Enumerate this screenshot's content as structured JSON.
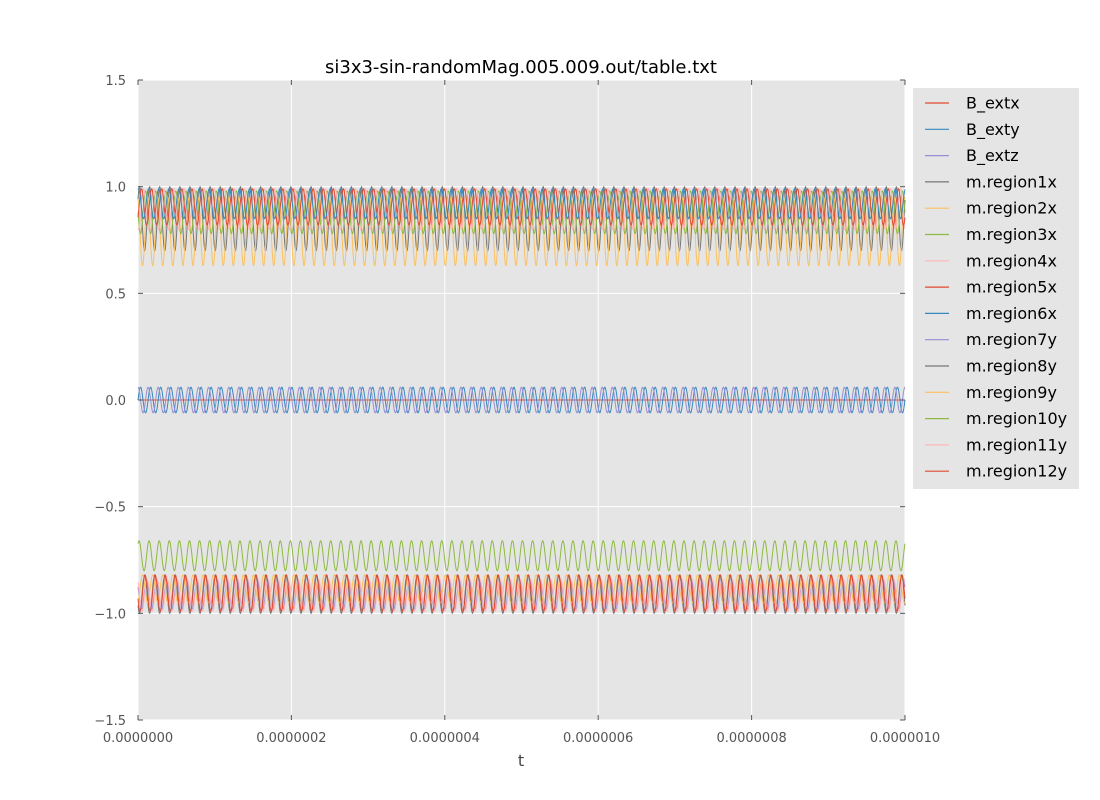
{
  "chart_data": {
    "type": "line",
    "title": "si3x3-sin-randomMag.005.009.out/table.txt",
    "xlabel": "t",
    "ylabel": "",
    "xlim": [
      0,
      1e-06
    ],
    "ylim": [
      -1.5,
      1.5
    ],
    "x_ticks": [
      "0.0000000",
      "0.0000002",
      "0.0000004",
      "0.0000006",
      "0.0000008",
      "0.0000010"
    ],
    "y_ticks": [
      "1.5",
      "1.0",
      "0.5",
      "0.0",
      "−0.5",
      "−1.0",
      "−1.5"
    ],
    "grid": true,
    "legend_position": "outside-right-top",
    "background": "#e5e5e5",
    "cycles": 76,
    "series": [
      {
        "name": "B_extx",
        "color": "#e24a33",
        "min": 0.0,
        "max": 0.0,
        "phase": 0.0
      },
      {
        "name": "B_exty",
        "color": "#348abd",
        "min": -0.06,
        "max": 0.06,
        "phase": 0.0
      },
      {
        "name": "B_extz",
        "color": "#988ed5",
        "min": -0.06,
        "max": 0.06,
        "phase": 0.25
      },
      {
        "name": "m.region1x",
        "color": "#777777",
        "min": 0.7,
        "max": 1.0,
        "phase": 0.1
      },
      {
        "name": "m.region2x",
        "color": "#fbc15e",
        "min": 0.63,
        "max": 0.95,
        "phase": 0.3
      },
      {
        "name": "m.region3x",
        "color": "#8eba42",
        "min": 0.78,
        "max": 0.98,
        "phase": 0.5
      },
      {
        "name": "m.region4x",
        "color": "#ffb5b8",
        "min": 0.8,
        "max": 0.99,
        "phase": 0.7
      },
      {
        "name": "m.region5x",
        "color": "#e24a33",
        "min": 0.82,
        "max": 0.99,
        "phase": 0.9
      },
      {
        "name": "m.region6x",
        "color": "#348abd",
        "min": 0.85,
        "max": 0.99,
        "phase": 0.2
      },
      {
        "name": "m.region7y",
        "color": "#988ed5",
        "min": -0.98,
        "max": -0.85,
        "phase": 0.4
      },
      {
        "name": "m.region8y",
        "color": "#777777",
        "min": -1.0,
        "max": -0.82,
        "phase": 0.6
      },
      {
        "name": "m.region9y",
        "color": "#fbc15e",
        "min": -0.95,
        "max": -0.82,
        "phase": 0.8
      },
      {
        "name": "m.region10y",
        "color": "#8eba42",
        "min": -0.8,
        "max": -0.66,
        "phase": 0.15
      },
      {
        "name": "m.region11y",
        "color": "#ffb5b8",
        "min": -0.99,
        "max": -0.84,
        "phase": 0.35
      },
      {
        "name": "m.region12y",
        "color": "#e24a33",
        "min": -0.99,
        "max": -0.82,
        "phase": 0.55
      }
    ]
  }
}
